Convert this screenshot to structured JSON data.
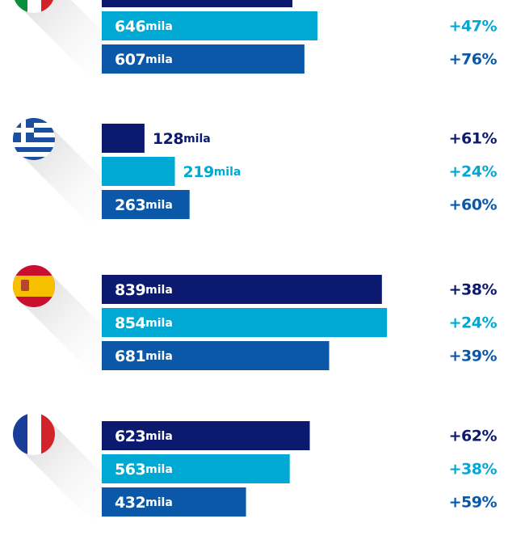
{
  "chart_data": {
    "type": "bar",
    "orientation": "horizontal",
    "categories": [
      null,
      null,
      null,
      null
    ],
    "unit": "mila",
    "xlim": [
      0,
      1270
    ],
    "series": [
      {
        "color": "#0b1a6f",
        "values": [
          571,
          128,
          839,
          623
        ],
        "value_labels": [
          null,
          "128",
          "839",
          "623"
        ],
        "change_values": [
          null,
          61,
          38,
          62
        ],
        "change_labels": [
          null,
          "+61%",
          "+38%",
          "+62%"
        ]
      },
      {
        "color": "#00a9d4",
        "values": [
          646,
          219,
          854,
          563
        ],
        "value_labels": [
          "646",
          "219",
          "854",
          "563"
        ],
        "change_values": [
          47,
          24,
          24,
          38
        ],
        "change_labels": [
          "+47%",
          "+24%",
          "+24%",
          "+38%"
        ]
      },
      {
        "color": "#0b58a8",
        "values": [
          607,
          263,
          681,
          432
        ],
        "value_labels": [
          "607",
          "263",
          "681",
          "432"
        ],
        "change_values": [
          76,
          60,
          39,
          59
        ],
        "change_labels": [
          "+76%",
          "+60%",
          "+39%",
          "+59%"
        ]
      }
    ]
  }
}
